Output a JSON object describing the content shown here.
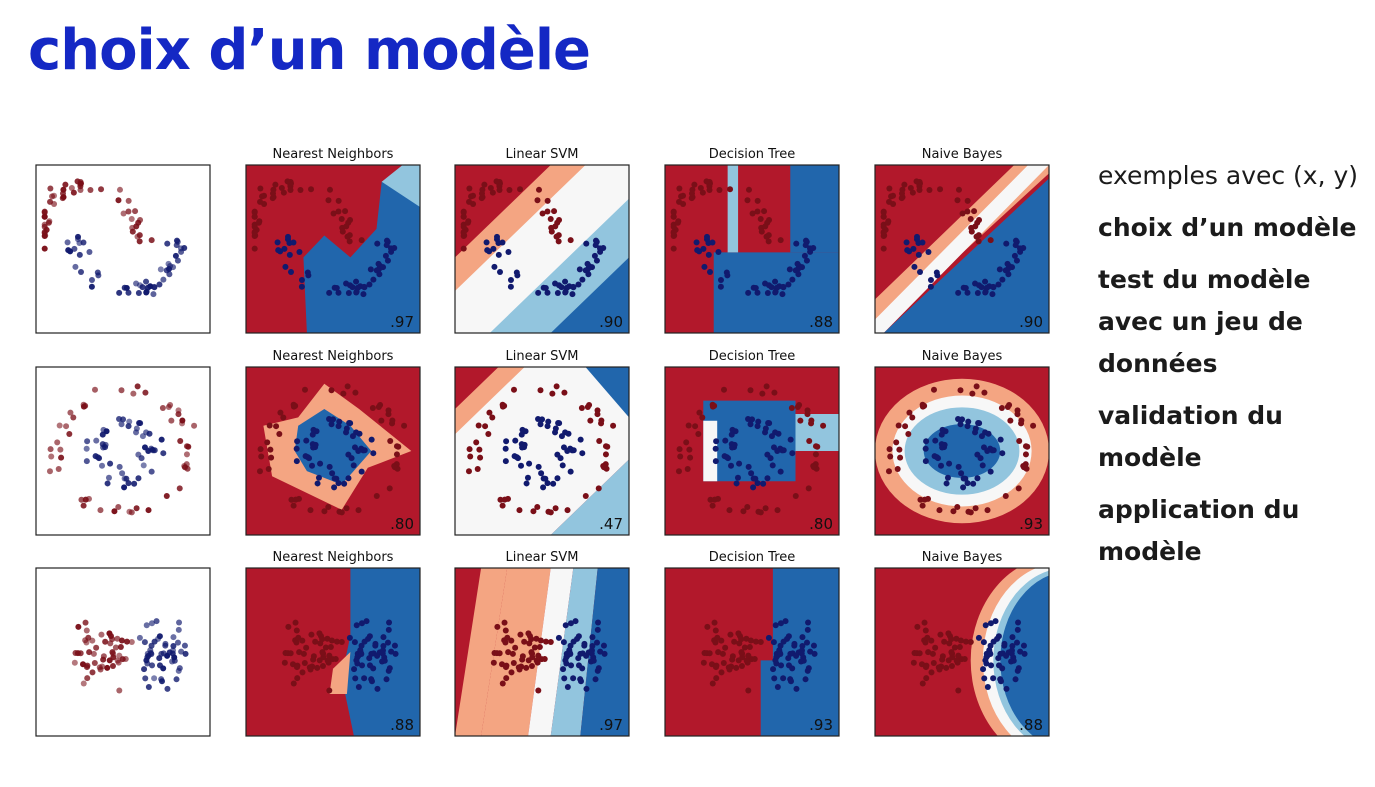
{
  "title": "choix d’un modèle",
  "steps": [
    {
      "text": "exemples avec (x, y)",
      "bold": false
    },
    {
      "text": "choix d’un modèle",
      "bold": true
    },
    {
      "text": "test du modèle avec un jeu de données",
      "bold": true
    },
    {
      "text": "validation du modèle",
      "bold": true
    },
    {
      "text": "application du modèle",
      "bold": true
    }
  ],
  "colors": {
    "title": "#1428c4",
    "red": "#b2182b",
    "blue": "#2166ac",
    "light_red": "#f4a582",
    "light_blue": "#92c5de",
    "white": "#f7f7f7"
  },
  "classifier_names": [
    "Nearest Neighbors",
    "Linear SVM",
    "Decision Tree",
    "Naive Bayes"
  ],
  "rows": [
    {
      "dataset": "moons",
      "scores": [
        ".97",
        ".90",
        ".88",
        ".90"
      ]
    },
    {
      "dataset": "circles",
      "scores": [
        ".80",
        ".47",
        ".80",
        ".93"
      ]
    },
    {
      "dataset": "linear",
      "scores": [
        ".88",
        ".97",
        ".93",
        ".88"
      ]
    }
  ]
}
